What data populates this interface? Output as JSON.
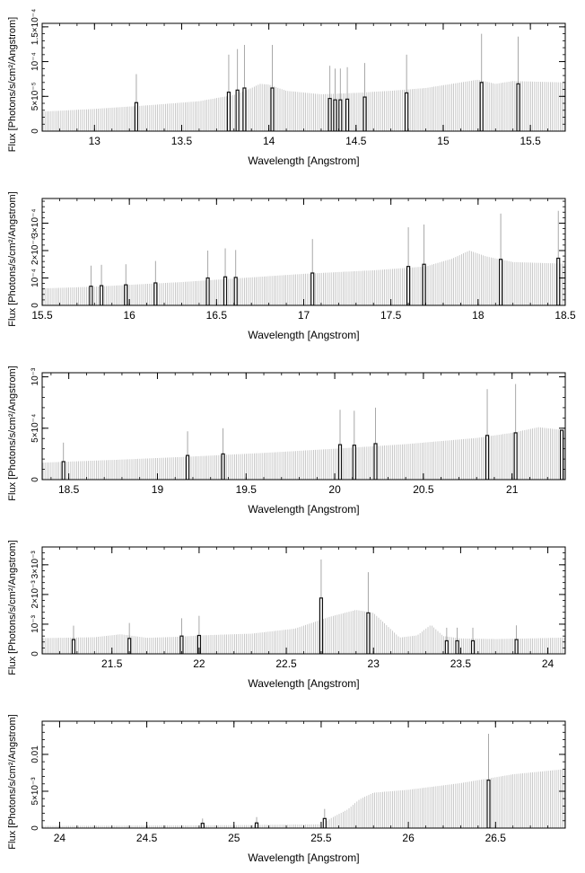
{
  "chart_data": [
    {
      "type": "bar",
      "xlabel": "Wavelength [Angstrom]",
      "ylabel": "Flux [Photons/s/cm²/Angstrom]",
      "xlim": [
        12.7,
        15.7
      ],
      "ylim": [
        0,
        0.000155
      ],
      "xticks": [
        13,
        13.5,
        14,
        14.5,
        15,
        15.5
      ],
      "xtick_labels": [
        "13",
        "13.5",
        "14",
        "14.5",
        "15",
        "15.5"
      ],
      "yticks": [
        5e-05,
        0.0001,
        0.00015
      ],
      "ytick_labels": [
        "5×10⁻⁵",
        "10⁻⁴",
        "1.5×10⁻⁴"
      ],
      "continuum": {
        "x": [
          12.7,
          13.0,
          13.3,
          13.6,
          13.8,
          13.9,
          13.95,
          14.0,
          14.1,
          14.3,
          14.5,
          14.7,
          14.9,
          15.1,
          15.2,
          15.3,
          15.4,
          15.7
        ],
        "y": [
          2.8e-05,
          3.2e-05,
          3.7e-05,
          4.3e-05,
          5.2e-05,
          6.2e-05,
          6.8e-05,
          6.7e-05,
          5.8e-05,
          5.3e-05,
          5.5e-05,
          5.8e-05,
          6.2e-05,
          7e-05,
          7.4e-05,
          6.8e-05,
          7.2e-05,
          7e-05
        ]
      },
      "lines": [
        {
          "x": 13.24,
          "box": 4.1e-05,
          "peak": 8.2e-05
        },
        {
          "x": 13.77,
          "box": 5.6e-05,
          "peak": 0.00011
        },
        {
          "x": 13.82,
          "box": 5.9e-05,
          "peak": 0.000118
        },
        {
          "x": 13.86,
          "box": 6.2e-05,
          "peak": 0.000124
        },
        {
          "x": 14.02,
          "box": 6.2e-05,
          "peak": 0.000124
        },
        {
          "x": 14.35,
          "box": 4.7e-05,
          "peak": 9.4e-05
        },
        {
          "x": 14.38,
          "box": 4.5e-05,
          "peak": 9e-05
        },
        {
          "x": 14.41,
          "box": 4.5e-05,
          "peak": 9e-05
        },
        {
          "x": 14.45,
          "box": 4.6e-05,
          "peak": 9.2e-05
        },
        {
          "x": 14.55,
          "box": 4.9e-05,
          "peak": 9.8e-05
        },
        {
          "x": 14.79,
          "box": 5.5e-05,
          "peak": 0.00011
        },
        {
          "x": 15.22,
          "box": 7e-05,
          "peak": 0.00014
        },
        {
          "x": 15.43,
          "box": 6.8e-05,
          "peak": 0.000136
        }
      ]
    },
    {
      "type": "bar",
      "xlabel": "Wavelength [Angstrom]",
      "ylabel": "Flux [Photons/s/cm²/Angstrom]",
      "xlim": [
        15.5,
        18.5
      ],
      "ylim": [
        0,
        0.00039
      ],
      "xticks": [
        15.5,
        16,
        16.5,
        17,
        17.5,
        18,
        18.5
      ],
      "xtick_labels": [
        "15.5",
        "16",
        "16.5",
        "17",
        "17.5",
        "18",
        "18.5"
      ],
      "yticks": [
        0.0001,
        0.0002,
        0.0003
      ],
      "ytick_labels": [
        "10⁻⁴",
        "2×10⁻⁴",
        "3×10⁻⁴"
      ],
      "continuum": {
        "x": [
          15.5,
          15.8,
          16.0,
          16.3,
          16.6,
          17.0,
          17.4,
          17.7,
          17.85,
          17.95,
          18.05,
          18.2,
          18.5
        ],
        "y": [
          6.2e-05,
          6.8e-05,
          7.5e-05,
          8.5e-05,
          9.8e-05,
          0.000115,
          0.000128,
          0.000142,
          0.00017,
          0.0002,
          0.000178,
          0.000158,
          0.000152
        ]
      },
      "lines": [
        {
          "x": 15.78,
          "box": 7e-05,
          "peak": 0.000145
        },
        {
          "x": 15.84,
          "box": 7.2e-05,
          "peak": 0.000148
        },
        {
          "x": 15.98,
          "box": 7.5e-05,
          "peak": 0.00015
        },
        {
          "x": 16.15,
          "box": 8.2e-05,
          "peak": 0.000162
        },
        {
          "x": 16.45,
          "box": 0.0001,
          "peak": 0.0002
        },
        {
          "x": 16.55,
          "box": 0.000104,
          "peak": 0.000208
        },
        {
          "x": 16.61,
          "box": 0.000102,
          "peak": 0.000202
        },
        {
          "x": 17.05,
          "box": 0.000118,
          "peak": 0.000242
        },
        {
          "x": 17.6,
          "box": 0.000142,
          "peak": 0.000285
        },
        {
          "x": 17.69,
          "box": 0.00015,
          "peak": 0.000295
        },
        {
          "x": 18.13,
          "box": 0.000168,
          "peak": 0.000335
        },
        {
          "x": 18.46,
          "box": 0.000172,
          "peak": 0.000345
        }
      ]
    },
    {
      "type": "bar",
      "xlabel": "Wavelength [Angstrom]",
      "ylabel": "Flux [Photons/s/cm²/Angstrom]",
      "xlim": [
        18.35,
        21.3
      ],
      "ylim": [
        0,
        0.00104
      ],
      "xticks": [
        18.5,
        19,
        19.5,
        20,
        20.5,
        21
      ],
      "xtick_labels": [
        "18.5",
        "19",
        "19.5",
        "20",
        "20.5",
        "21"
      ],
      "yticks": [
        0.0005,
        0.001
      ],
      "ytick_labels": [
        "5×10⁻⁴",
        "10⁻³"
      ],
      "continuum": {
        "x": [
          18.35,
          18.8,
          19.2,
          19.6,
          20.0,
          20.4,
          20.8,
          21.0,
          21.15,
          21.3
        ],
        "y": [
          0.000165,
          0.000195,
          0.000225,
          0.00026,
          0.0003,
          0.000345,
          0.000405,
          0.000455,
          0.00051,
          0.00048
        ]
      },
      "lines": [
        {
          "x": 18.47,
          "box": 0.000175,
          "peak": 0.00036
        },
        {
          "x": 19.17,
          "box": 0.000235,
          "peak": 0.00047
        },
        {
          "x": 19.37,
          "box": 0.00025,
          "peak": 0.0005
        },
        {
          "x": 20.03,
          "box": 0.00034,
          "peak": 0.00068
        },
        {
          "x": 20.11,
          "box": 0.000335,
          "peak": 0.00067
        },
        {
          "x": 20.23,
          "box": 0.00035,
          "peak": 0.0007
        },
        {
          "x": 20.86,
          "box": 0.00043,
          "peak": 0.00088
        },
        {
          "x": 21.02,
          "box": 0.000455,
          "peak": 0.00093
        },
        {
          "x": 21.28,
          "box": 0.00048,
          "peak": 0.00048
        }
      ]
    },
    {
      "type": "bar",
      "xlabel": "Wavelength [Angstrom]",
      "ylabel": "Flux [Photons/s/cm²/Angstrom]",
      "xlim": [
        21.1,
        24.1
      ],
      "ylim": [
        0,
        0.0036
      ],
      "xticks": [
        21.5,
        22,
        22.5,
        23,
        23.5,
        24
      ],
      "xtick_labels": [
        "21.5",
        "22",
        "22.5",
        "23",
        "23.5",
        "24"
      ],
      "yticks": [
        0.001,
        0.002,
        0.003
      ],
      "ytick_labels": [
        "10⁻³",
        "2×10⁻³",
        "3×10⁻³"
      ],
      "continuum": {
        "x": [
          21.1,
          21.4,
          21.55,
          21.7,
          21.9,
          22.0,
          22.3,
          22.55,
          22.75,
          22.9,
          23.0,
          23.15,
          23.25,
          23.33,
          23.4,
          23.5,
          23.7,
          23.9,
          24.1
        ],
        "y": [
          0.00053,
          0.00056,
          0.00066,
          0.00054,
          0.00058,
          0.00062,
          0.00068,
          0.00085,
          0.00125,
          0.00148,
          0.00138,
          0.00055,
          0.00062,
          0.00098,
          0.0006,
          0.00052,
          0.0005,
          0.00052,
          0.00055
        ]
      },
      "lines": [
        {
          "x": 21.28,
          "box": 0.00048,
          "peak": 0.00095
        },
        {
          "x": 21.6,
          "box": 0.00052,
          "peak": 0.00104
        },
        {
          "x": 21.9,
          "box": 0.0006,
          "peak": 0.0012
        },
        {
          "x": 22.0,
          "box": 0.00062,
          "peak": 0.00128
        },
        {
          "x": 22.7,
          "box": 0.00188,
          "peak": 0.00318
        },
        {
          "x": 22.97,
          "box": 0.00138,
          "peak": 0.00275
        },
        {
          "x": 23.42,
          "box": 0.00044,
          "peak": 0.00088
        },
        {
          "x": 23.48,
          "box": 0.00044,
          "peak": 0.00088
        },
        {
          "x": 23.57,
          "box": 0.00044,
          "peak": 0.00088
        },
        {
          "x": 23.82,
          "box": 0.00048,
          "peak": 0.00096
        }
      ]
    },
    {
      "type": "bar",
      "xlabel": "Wavelength [Angstrom]",
      "ylabel": "Flux [Photons/s/cm²/Angstrom]",
      "xlim": [
        23.9,
        26.9
      ],
      "ylim": [
        0,
        0.0145
      ],
      "xticks": [
        24,
        24.5,
        25,
        25.5,
        26,
        26.5
      ],
      "xtick_labels": [
        "24",
        "24.5",
        "25",
        "25.5",
        "26",
        "26.5"
      ],
      "yticks": [
        0.005,
        0.01
      ],
      "ytick_labels": [
        "5×10⁻³",
        "0.01"
      ],
      "continuum": {
        "x": [
          23.9,
          24.5,
          25.0,
          25.5,
          25.56,
          25.65,
          25.72,
          25.8,
          26.0,
          26.3,
          26.6,
          26.9
        ],
        "y": [
          0.0003,
          0.00035,
          0.0004,
          0.0005,
          0.0014,
          0.0025,
          0.0039,
          0.0048,
          0.0052,
          0.0061,
          0.0073,
          0.008
        ]
      },
      "lines": [
        {
          "x": 24.82,
          "box": 0.00065,
          "peak": 0.0013
        },
        {
          "x": 25.13,
          "box": 0.0007,
          "peak": 0.0015
        },
        {
          "x": 25.52,
          "box": 0.0013,
          "peak": 0.0026
        },
        {
          "x": 26.46,
          "box": 0.0065,
          "peak": 0.0128
        }
      ]
    }
  ]
}
